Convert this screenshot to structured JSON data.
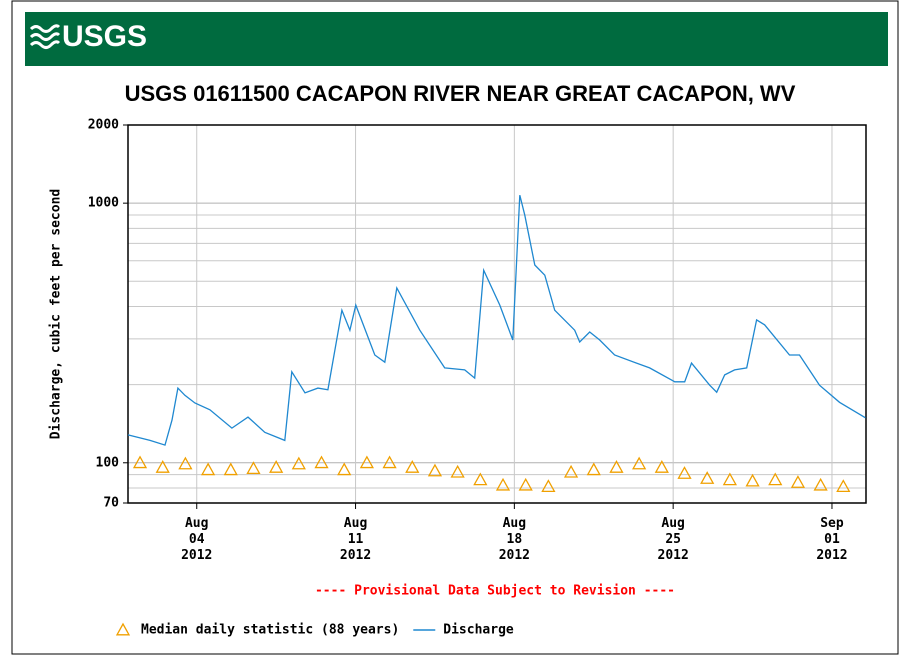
{
  "header": {
    "logo": "USGS"
  },
  "chart_data": {
    "type": "line",
    "title": "USGS 01611500 CACAPON RIVER NEAR GREAT CACAPON, WV",
    "y_label": "Discharge, cubic feet per second",
    "note": "---- Provisional Data Subject to Revision ----",
    "y_scale": "log",
    "ylim": [
      70,
      2000
    ],
    "yticks": [
      70,
      100,
      1000,
      2000
    ],
    "minor_yticks": [
      80,
      90,
      200,
      300,
      400,
      500,
      600,
      700,
      800,
      900
    ],
    "xlim": [
      0.97,
      33.5
    ],
    "xticks": [
      {
        "value": 4,
        "label": "Aug 04 2012"
      },
      {
        "value": 11,
        "label": "Aug 11 2012"
      },
      {
        "value": 18,
        "label": "Aug 18 2012"
      },
      {
        "value": 25,
        "label": "Aug 25 2012"
      },
      {
        "value": 32,
        "label": "Sep 01 2012"
      }
    ],
    "grid": true,
    "series": [
      {
        "name": "Median daily statistic (88 years)",
        "color": "#f0a000",
        "marker": "triangle",
        "x": [
          1.5,
          2.5,
          3.5,
          4.5,
          5.5,
          6.5,
          7.5,
          8.5,
          9.5,
          10.5,
          11.5,
          12.5,
          13.5,
          14.5,
          15.5,
          16.5,
          17.5,
          18.5,
          19.5,
          20.5,
          21.5,
          22.5,
          23.5,
          24.5,
          25.5,
          26.5,
          27.5,
          28.5,
          29.5,
          30.5,
          31.5,
          32.5
        ],
        "values": [
          100,
          96,
          99,
          94,
          94,
          95,
          96,
          99,
          100,
          94,
          100,
          100,
          96,
          93,
          92,
          86,
          82,
          82,
          81,
          92,
          94,
          96,
          99,
          96,
          91,
          87,
          86,
          85,
          86,
          84,
          82,
          81
        ]
      },
      {
        "name": "Discharge",
        "color": "#1f88d0",
        "x": [
          0.97,
          1.94,
          2.6,
          2.91,
          3.17,
          3.48,
          3.92,
          4.58,
          5.55,
          6.26,
          7.0,
          7.88,
          8.19,
          8.77,
          9.34,
          9.78,
          10.4,
          10.75,
          11.01,
          11.85,
          12.29,
          12.82,
          13.83,
          14.93,
          15.81,
          16.25,
          16.65,
          17.36,
          17.93,
          18.24,
          18.46,
          18.9,
          19.34,
          19.78,
          20.66,
          20.88,
          21.32,
          21.76,
          22.42,
          23.96,
          25.07,
          25.51,
          25.81,
          26.61,
          26.92,
          27.27,
          27.71,
          28.24,
          28.68,
          29.03,
          30.13,
          30.57,
          31.45,
          32.33,
          33.48
        ],
        "values": [
          128,
          122,
          117,
          146,
          194,
          182,
          170,
          160,
          136,
          150,
          131,
          122,
          224,
          186,
          194,
          191,
          387,
          324,
          405,
          260,
          244,
          471,
          324,
          232,
          228,
          212,
          552,
          405,
          297,
          1074,
          899,
          578,
          528,
          387,
          324,
          292,
          319,
          297,
          260,
          232,
          205,
          205,
          242,
          199,
          187,
          218,
          228,
          232,
          355,
          340,
          260,
          260,
          199,
          171,
          149
        ]
      }
    ]
  }
}
